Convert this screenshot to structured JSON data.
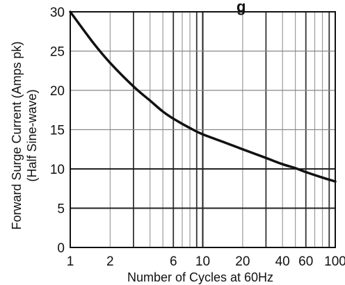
{
  "chart_data": {
    "type": "line",
    "title_fragment": "g",
    "xlabel": "Number of Cycles at 60Hz",
    "ylabel_lines": [
      "Forward Surge Current (Amps pk)",
      "(Half Sine-wave)"
    ],
    "x_scale": "log",
    "xlim": [
      1,
      100
    ],
    "ylim": [
      0,
      30
    ],
    "x_ticks": [
      1,
      2,
      6,
      10,
      20,
      40,
      60,
      100
    ],
    "x_tick_labels": [
      "1",
      "2",
      "6",
      "10",
      "20",
      "40",
      "60",
      "100"
    ],
    "y_ticks": [
      0,
      5,
      10,
      15,
      20,
      25,
      30
    ],
    "y_tick_labels": [
      "0",
      "5",
      "10",
      "15",
      "20",
      "25",
      "30"
    ],
    "grid": true,
    "series": [
      {
        "x": [
          1,
          1.5,
          2,
          3,
          4,
          5,
          6,
          8,
          10,
          15,
          20,
          30,
          40,
          50,
          60,
          80,
          100
        ],
        "y": [
          30,
          26,
          23.5,
          20.5,
          18.7,
          17.3,
          16.4,
          15.2,
          14.4,
          13.3,
          12.5,
          11.4,
          10.6,
          10.1,
          9.6,
          8.9,
          8.4
        ],
        "color": "#111111"
      }
    ]
  }
}
